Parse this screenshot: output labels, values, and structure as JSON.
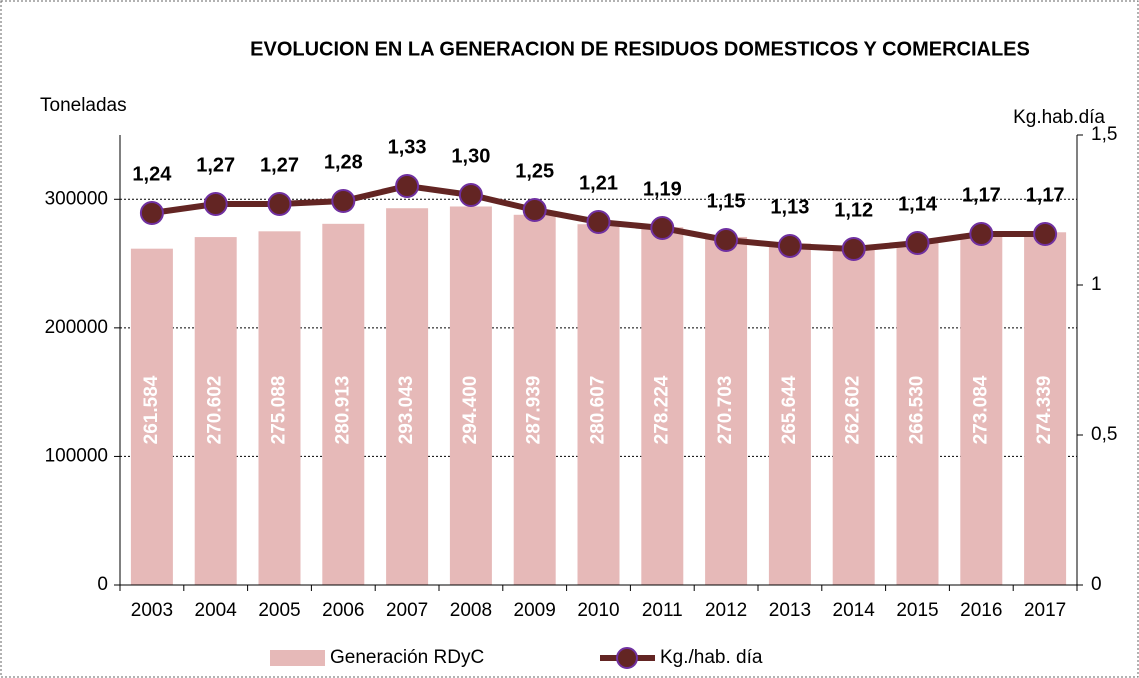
{
  "chart_data": {
    "type": "bar",
    "title": "EVOLUCION EN LA GENERACION DE RESIDUOS DOMESTICOS Y COMERCIALES",
    "y_label": "Toneladas",
    "y2_label": "Kg.hab.día",
    "categories": [
      "2003",
      "2004",
      "2005",
      "2006",
      "2007",
      "2008",
      "2009",
      "2010",
      "2011",
      "2012",
      "2013",
      "2014",
      "2015",
      "2016",
      "2017"
    ],
    "series": [
      {
        "name": "Generación RDyC",
        "type": "bar",
        "color": "#e6b9b8",
        "axis": "y",
        "values": [
          261584,
          270602,
          275088,
          280913,
          293043,
          294400,
          287939,
          280607,
          278224,
          270703,
          265644,
          262602,
          266530,
          273084,
          274339
        ],
        "value_labels": [
          "261.584",
          "270.602",
          "275.088",
          "280.913",
          "293.043",
          "294.400",
          "287.939",
          "280.607",
          "278.224",
          "270.703",
          "265.644",
          "262.602",
          "266.530",
          "273.084",
          "274.339"
        ]
      },
      {
        "name": "Kg./hab. día",
        "type": "line",
        "color": "#632523",
        "marker_edge": "#7030a0",
        "axis": "y2",
        "values": [
          1.24,
          1.27,
          1.27,
          1.28,
          1.33,
          1.3,
          1.25,
          1.21,
          1.19,
          1.15,
          1.13,
          1.12,
          1.14,
          1.17,
          1.17
        ],
        "value_labels": [
          "1,24",
          "1,27",
          "1,27",
          "1,28",
          "1,33",
          "1,30",
          "1,25",
          "1,21",
          "1,19",
          "1,15",
          "1,13",
          "1,12",
          "1,14",
          "1,17",
          "1,17"
        ]
      }
    ],
    "ylim": [
      0,
      350000
    ],
    "yticks": [
      0,
      100000,
      200000,
      300000
    ],
    "y2lim": [
      0,
      1.5
    ],
    "y2ticks": [
      0,
      {
        "value": 0.5,
        "label": "0,5"
      },
      1,
      {
        "value": 1.5,
        "label": "1,5"
      }
    ],
    "grid": true,
    "legend": "bottom"
  }
}
